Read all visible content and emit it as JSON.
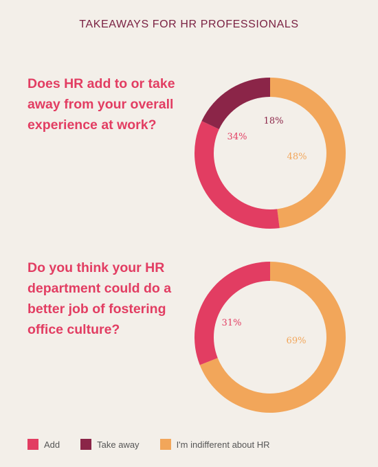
{
  "page": {
    "title": "TAKEAWAYS FOR HR PROFESSIONALS"
  },
  "colors": {
    "add": "#e23d62",
    "take_away": "#8b2548",
    "indifferent": "#f2a65a"
  },
  "legend": [
    {
      "label": "Add",
      "color": "#e23d62"
    },
    {
      "label": "Take away",
      "color": "#8b2548"
    },
    {
      "label": "I'm indifferent about HR",
      "color": "#f2a65a"
    }
  ],
  "chart_data": [
    {
      "type": "pie",
      "title": "Does HR add to or take away from your overall experience at work?",
      "slices": [
        {
          "label": "I'm indifferent about HR",
          "value": 48,
          "display": "48%",
          "color": "#f2a65a"
        },
        {
          "label": "Add",
          "value": 34,
          "display": "34%",
          "color": "#e23d62"
        },
        {
          "label": "Take away",
          "value": 18,
          "display": "18%",
          "color": "#8b2548"
        }
      ]
    },
    {
      "type": "pie",
      "title": "Do you think your HR department could do a better job of fostering office culture?",
      "slices": [
        {
          "label": "I'm indifferent about HR",
          "value": 69,
          "display": "69%",
          "color": "#f2a65a"
        },
        {
          "label": "Add",
          "value": 31,
          "display": "31%",
          "color": "#e23d62"
        }
      ]
    }
  ]
}
